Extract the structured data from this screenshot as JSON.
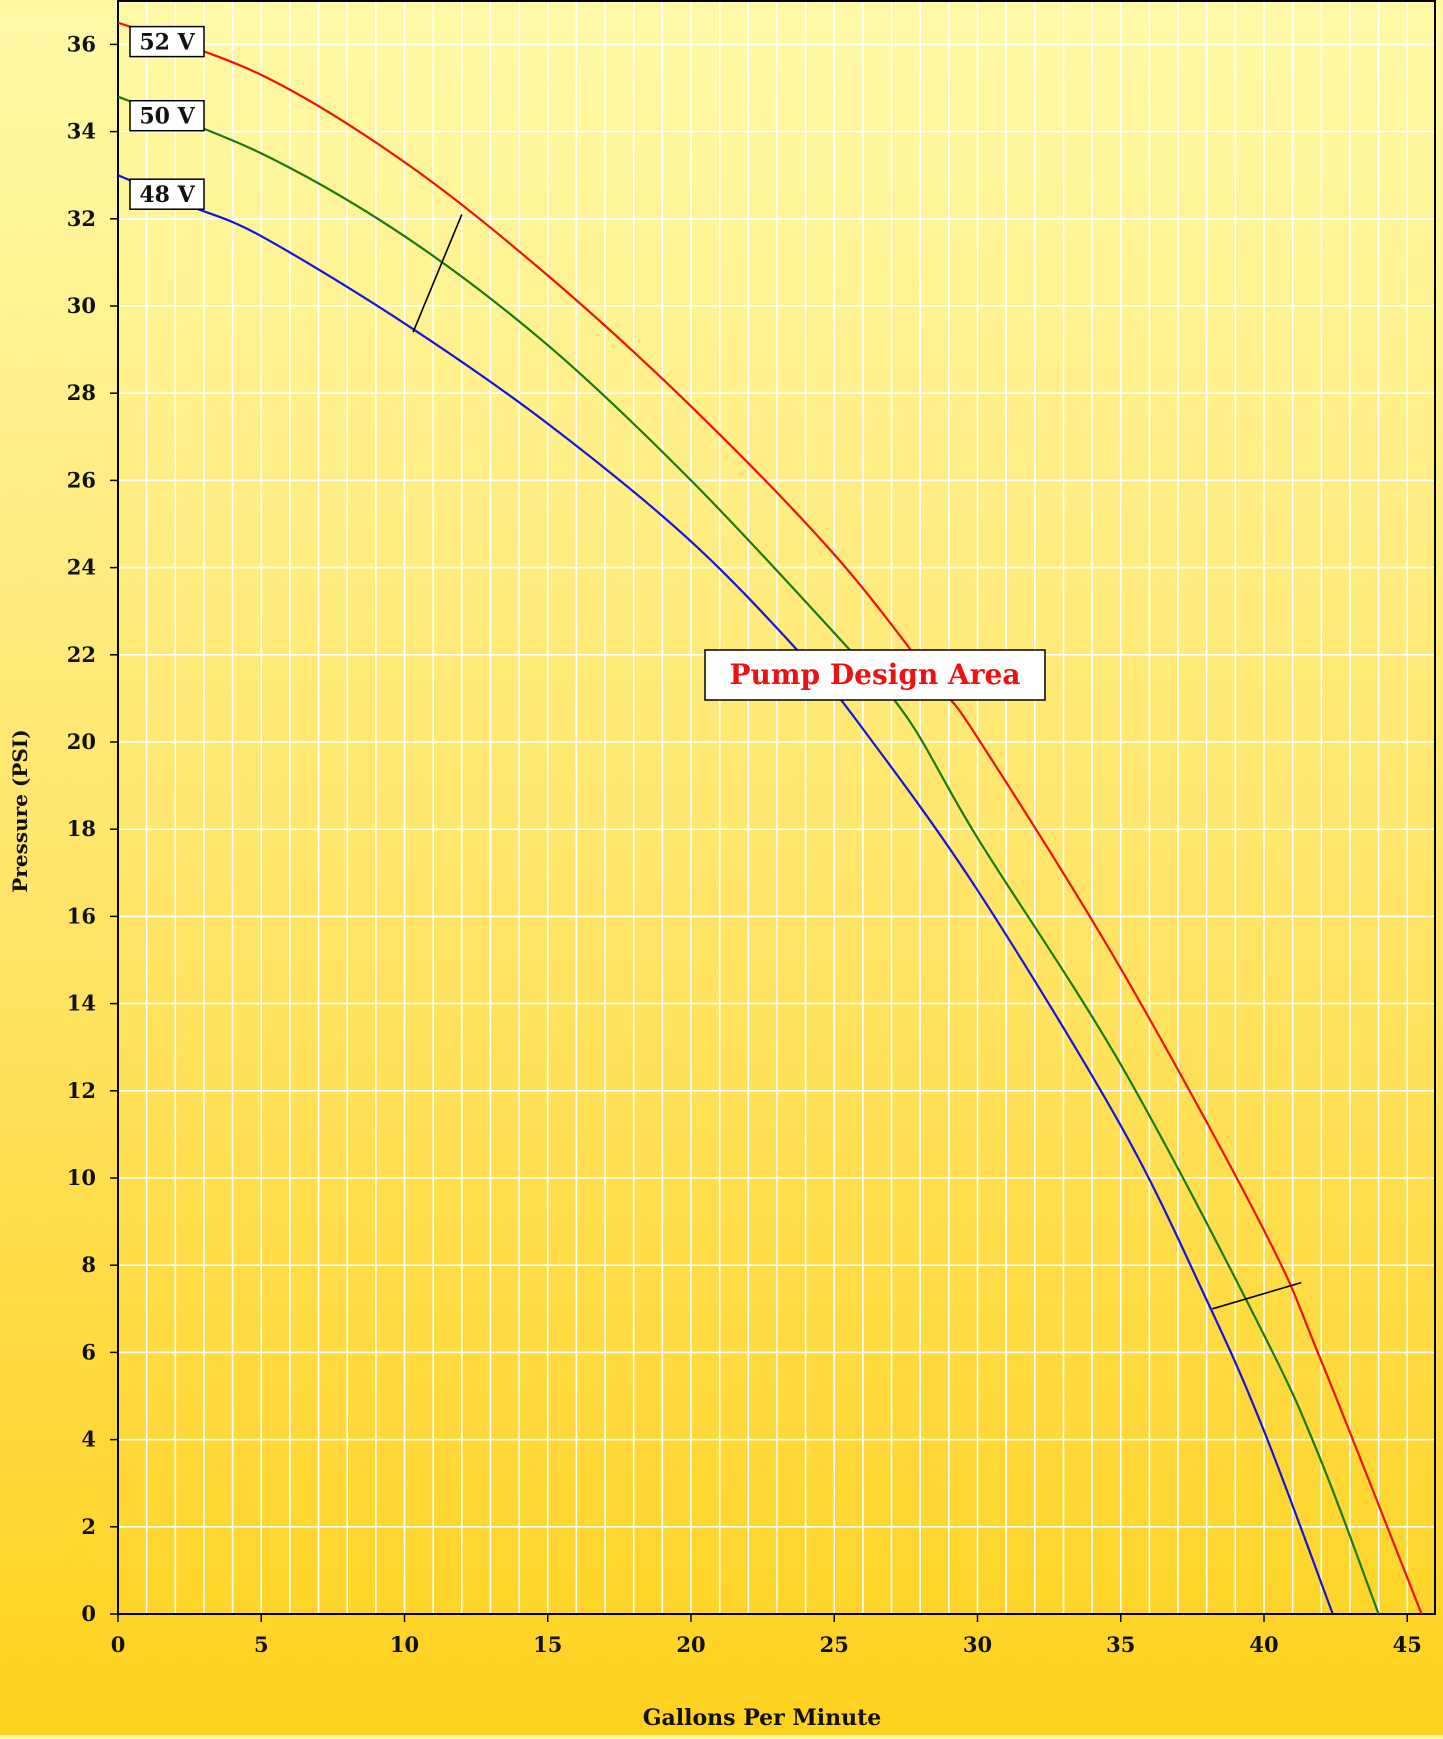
{
  "chart_data": {
    "type": "line",
    "title": "",
    "xlabel": "Gallons Per Minute",
    "ylabel": "Pressure (PSI)",
    "xlim": [
      0,
      46
    ],
    "ylim": [
      0,
      37
    ],
    "x_ticks": [
      0,
      5,
      10,
      15,
      20,
      25,
      30,
      35,
      40,
      45
    ],
    "y_ticks": [
      0,
      2,
      4,
      6,
      8,
      10,
      12,
      14,
      16,
      18,
      20,
      22,
      24,
      26,
      28,
      30,
      32,
      34,
      36
    ],
    "grid": true,
    "series": [
      {
        "name": "52 V",
        "color": "#ee1111",
        "points": [
          [
            0,
            36.5
          ],
          [
            5,
            35.3
          ],
          [
            10,
            33.3
          ],
          [
            15,
            30.7
          ],
          [
            20,
            27.7
          ],
          [
            25,
            24.3
          ],
          [
            28.5,
            21.4
          ],
          [
            30,
            20.1
          ],
          [
            35,
            14.8
          ],
          [
            40,
            8.8
          ],
          [
            42,
            5.8
          ],
          [
            45.5,
            0
          ]
        ]
      },
      {
        "name": "50 V",
        "color": "#1a7a10",
        "points": [
          [
            0,
            34.8
          ],
          [
            5,
            33.5
          ],
          [
            10,
            31.6
          ],
          [
            15,
            29.1
          ],
          [
            20,
            26.0
          ],
          [
            25,
            22.5
          ],
          [
            27.5,
            20.6
          ],
          [
            30,
            17.8
          ],
          [
            35,
            12.6
          ],
          [
            40,
            6.4
          ],
          [
            42,
            3.5
          ],
          [
            44,
            0
          ]
        ]
      },
      {
        "name": "48 V",
        "color": "#1414e0",
        "points": [
          [
            0,
            33.0
          ],
          [
            2.5,
            32.3
          ],
          [
            5,
            31.6
          ],
          [
            10,
            29.6
          ],
          [
            15,
            27.3
          ],
          [
            20,
            24.6
          ],
          [
            24,
            21.9
          ],
          [
            26,
            20.3
          ],
          [
            30,
            16.6
          ],
          [
            35,
            11.2
          ],
          [
            38,
            7.2
          ],
          [
            40,
            4.2
          ],
          [
            42.4,
            0
          ]
        ]
      }
    ],
    "annotations": {
      "design_area_label": "Pump Design Area",
      "design_area_color": "#ee1111",
      "upper_segment": [
        [
          10.3,
          29.4
        ],
        [
          12.0,
          32.1
        ]
      ],
      "lower_segment": [
        [
          38.2,
          7.0
        ],
        [
          41.3,
          7.6
        ]
      ]
    }
  }
}
